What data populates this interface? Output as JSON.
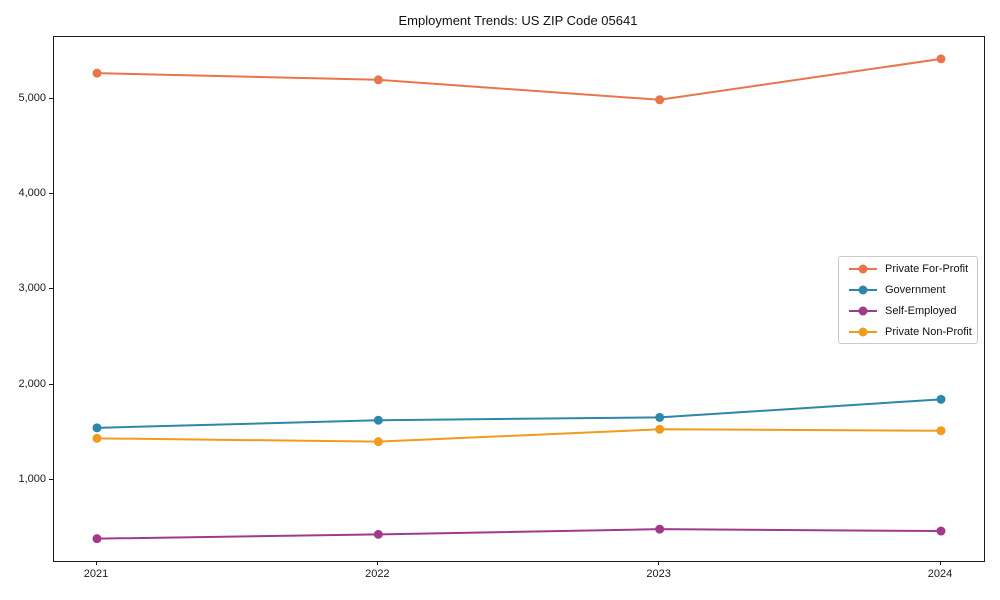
{
  "chart_data": {
    "type": "line",
    "title": "Employment Trends: US ZIP Code 05641",
    "categories": [
      "2021",
      "2022",
      "2023",
      "2024"
    ],
    "series": [
      {
        "name": "Private For-Profit",
        "color": "#e8764a",
        "values": [
          5280,
          5210,
          5000,
          5430
        ]
      },
      {
        "name": "Government",
        "color": "#2e86ab",
        "values": [
          1550,
          1630,
          1660,
          1850
        ]
      },
      {
        "name": "Self-Employed",
        "color": "#a23a8c",
        "values": [
          385,
          430,
          485,
          465
        ]
      },
      {
        "name": "Private Non-Profit",
        "color": "#f09b1d",
        "values": [
          1440,
          1405,
          1535,
          1520
        ]
      }
    ],
    "xlabel": "",
    "ylabel": "",
    "ylim": [
      150,
      5660
    ],
    "yticks": {
      "values": [
        1000,
        2000,
        3000,
        4000,
        5000
      ],
      "labels": [
        "1,000",
        "2,000",
        "3,000",
        "4,000",
        "5,000"
      ]
    },
    "grid": false,
    "legend_position": "right-center",
    "axis_color": "#1a1a1a"
  }
}
